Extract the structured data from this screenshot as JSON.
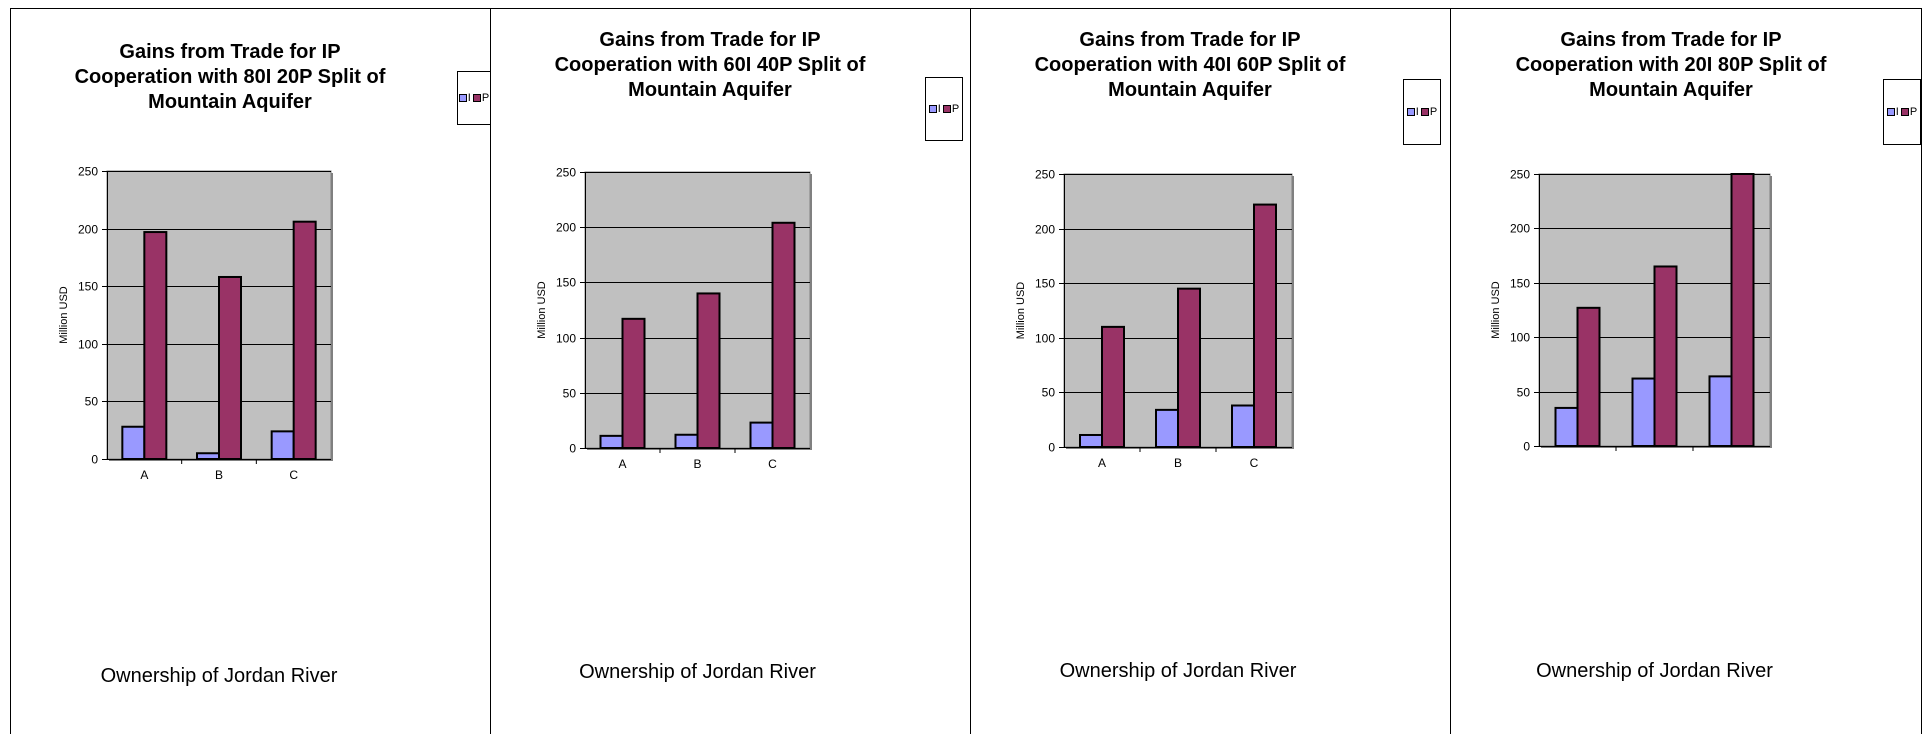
{
  "colors": {
    "I": "#9999ff",
    "P": "#993366",
    "plot_bg": "#c0c0c0"
  },
  "chart_data": [
    {
      "type": "bar",
      "title": "Gains from Trade for IP\nCooperation with 80I 20P Split of\nMountain Aquifer",
      "xlabel": "Ownership of Jordan River",
      "ylabel": "Million USD",
      "categories": [
        "A",
        "B",
        "C"
      ],
      "ylim": [
        0,
        250
      ],
      "yticks": [
        0,
        50,
        100,
        150,
        200,
        250
      ],
      "grid": true,
      "legend": "right",
      "series": [
        {
          "name": "I",
          "values": [
            28,
            5,
            24
          ]
        },
        {
          "name": "P",
          "values": [
            197,
            158,
            206
          ]
        }
      ]
    },
    {
      "type": "bar",
      "title": "Gains from Trade for IP\nCooperation with 60I 40P Split of\nMountain Aquifer",
      "xlabel": "Ownership of Jordan River",
      "ylabel": "Million USD",
      "categories": [
        "A",
        "B",
        "C"
      ],
      "ylim": [
        0,
        250
      ],
      "yticks": [
        0,
        50,
        100,
        150,
        200,
        250
      ],
      "grid": true,
      "legend": "right",
      "series": [
        {
          "name": "I",
          "values": [
            11,
            12,
            23
          ]
        },
        {
          "name": "P",
          "values": [
            117,
            140,
            204
          ]
        }
      ]
    },
    {
      "type": "bar",
      "title": "Gains from Trade for IP\nCooperation with 40I 60P Split of\nMountain Aquifer",
      "xlabel": "Ownership of Jordan River",
      "ylabel": "Million USD",
      "categories": [
        "A",
        "B",
        "C"
      ],
      "ylim": [
        0,
        250
      ],
      "yticks": [
        0,
        50,
        100,
        150,
        200,
        250
      ],
      "grid": true,
      "legend": "right",
      "series": [
        {
          "name": "I",
          "values": [
            11,
            34,
            38
          ]
        },
        {
          "name": "P",
          "values": [
            110,
            145,
            222
          ]
        }
      ]
    },
    {
      "type": "bar",
      "title": "Gains from Trade for IP\nCooperation with 20I 80P Split of\nMountain Aquifer",
      "xlabel": "Ownership of Jordan River",
      "ylabel": "Million USD",
      "categories": [
        "",
        "",
        ""
      ],
      "ylim": [
        0,
        250
      ],
      "yticks": [
        0,
        50,
        100,
        150,
        200,
        250
      ],
      "grid": true,
      "legend": "right",
      "series": [
        {
          "name": "I",
          "values": [
            35,
            62,
            64
          ]
        },
        {
          "name": "P",
          "values": [
            127,
            165,
            250
          ]
        }
      ]
    }
  ]
}
